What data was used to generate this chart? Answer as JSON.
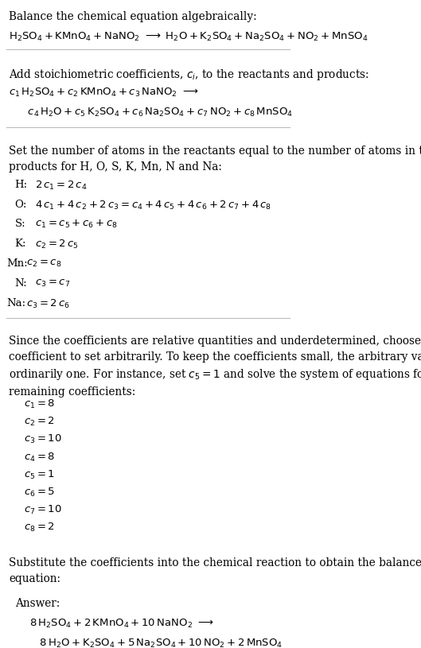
{
  "title_line": "Balance the chemical equation algebraically:",
  "equation_line": "$\\mathsf{H_2SO_4 + KMnO_4 + NaNO_2 \\;\\longrightarrow\\; H_2O + K_2SO_4 + Na_2SO_4 + NO_2 + MnSO_4}$",
  "section2_title": "Add stoichiometric coefficients, $c_i$, to the reactants and products:",
  "section2_line1": "$c_1\\, \\mathsf{H_2SO_4} + c_2\\, \\mathsf{KMnO_4} + c_3\\, \\mathsf{NaNO_2} \\;\\longrightarrow$",
  "section2_line2": "$\\quad c_4\\, \\mathsf{H_2O} + c_5\\, \\mathsf{K_2SO_4} + c_6\\, \\mathsf{Na_2SO_4} + c_7\\, \\mathsf{NO_2} + c_8\\, \\mathsf{MnSO_4}$",
  "section3_title": "Set the number of atoms in the reactants equal to the number of atoms in the\nproducts for H, O, S, K, Mn, N and Na:",
  "equations": [
    [
      "H:",
      "$2\\,c_1 = 2\\,c_4$"
    ],
    [
      "O:",
      "$4\\,c_1 + 4\\,c_2 + 2\\,c_3 = c_4 + 4\\,c_5 + 4\\,c_6 + 2\\,c_7 + 4\\,c_8$"
    ],
    [
      "S:",
      "$c_1 = c_5 + c_6 + c_8$"
    ],
    [
      "K:",
      "$c_2 = 2\\,c_5$"
    ],
    [
      "Mn:",
      "$c_2 = c_8$"
    ],
    [
      "N:",
      "$c_3 = c_7$"
    ],
    [
      "Na:",
      "$c_3 = 2\\,c_6$"
    ]
  ],
  "section4_text": "Since the coefficients are relative quantities and underdetermined, choose a\ncoefficient to set arbitrarily. To keep the coefficients small, the arbitrary value is\nordinarily one. For instance, set $c_5 = 1$ and solve the system of equations for the\nremaining coefficients:",
  "coefficients": [
    "$c_1 = 8$",
    "$c_2 = 2$",
    "$c_3 = 10$",
    "$c_4 = 8$",
    "$c_5 = 1$",
    "$c_6 = 5$",
    "$c_7 = 10$",
    "$c_8 = 2$"
  ],
  "section5_text": "Substitute the coefficients into the chemical reaction to obtain the balanced\nequation:",
  "answer_line1": "$8\\, \\mathsf{H_2SO_4} + 2\\, \\mathsf{KMnO_4} + 10\\, \\mathsf{NaNO_2} \\;\\longrightarrow$",
  "answer_line2": "$\\quad 8\\, \\mathsf{H_2O} + \\mathsf{K_2SO_4} + 5\\, \\mathsf{Na_2SO_4} + 10\\, \\mathsf{NO_2} + 2\\, \\mathsf{MnSO_4}$",
  "bg_color": "#ffffff",
  "answer_box_color": "#e8f4f8",
  "answer_box_edge": "#a0c8d8",
  "text_color": "#000000",
  "separator_color": "#cccccc"
}
